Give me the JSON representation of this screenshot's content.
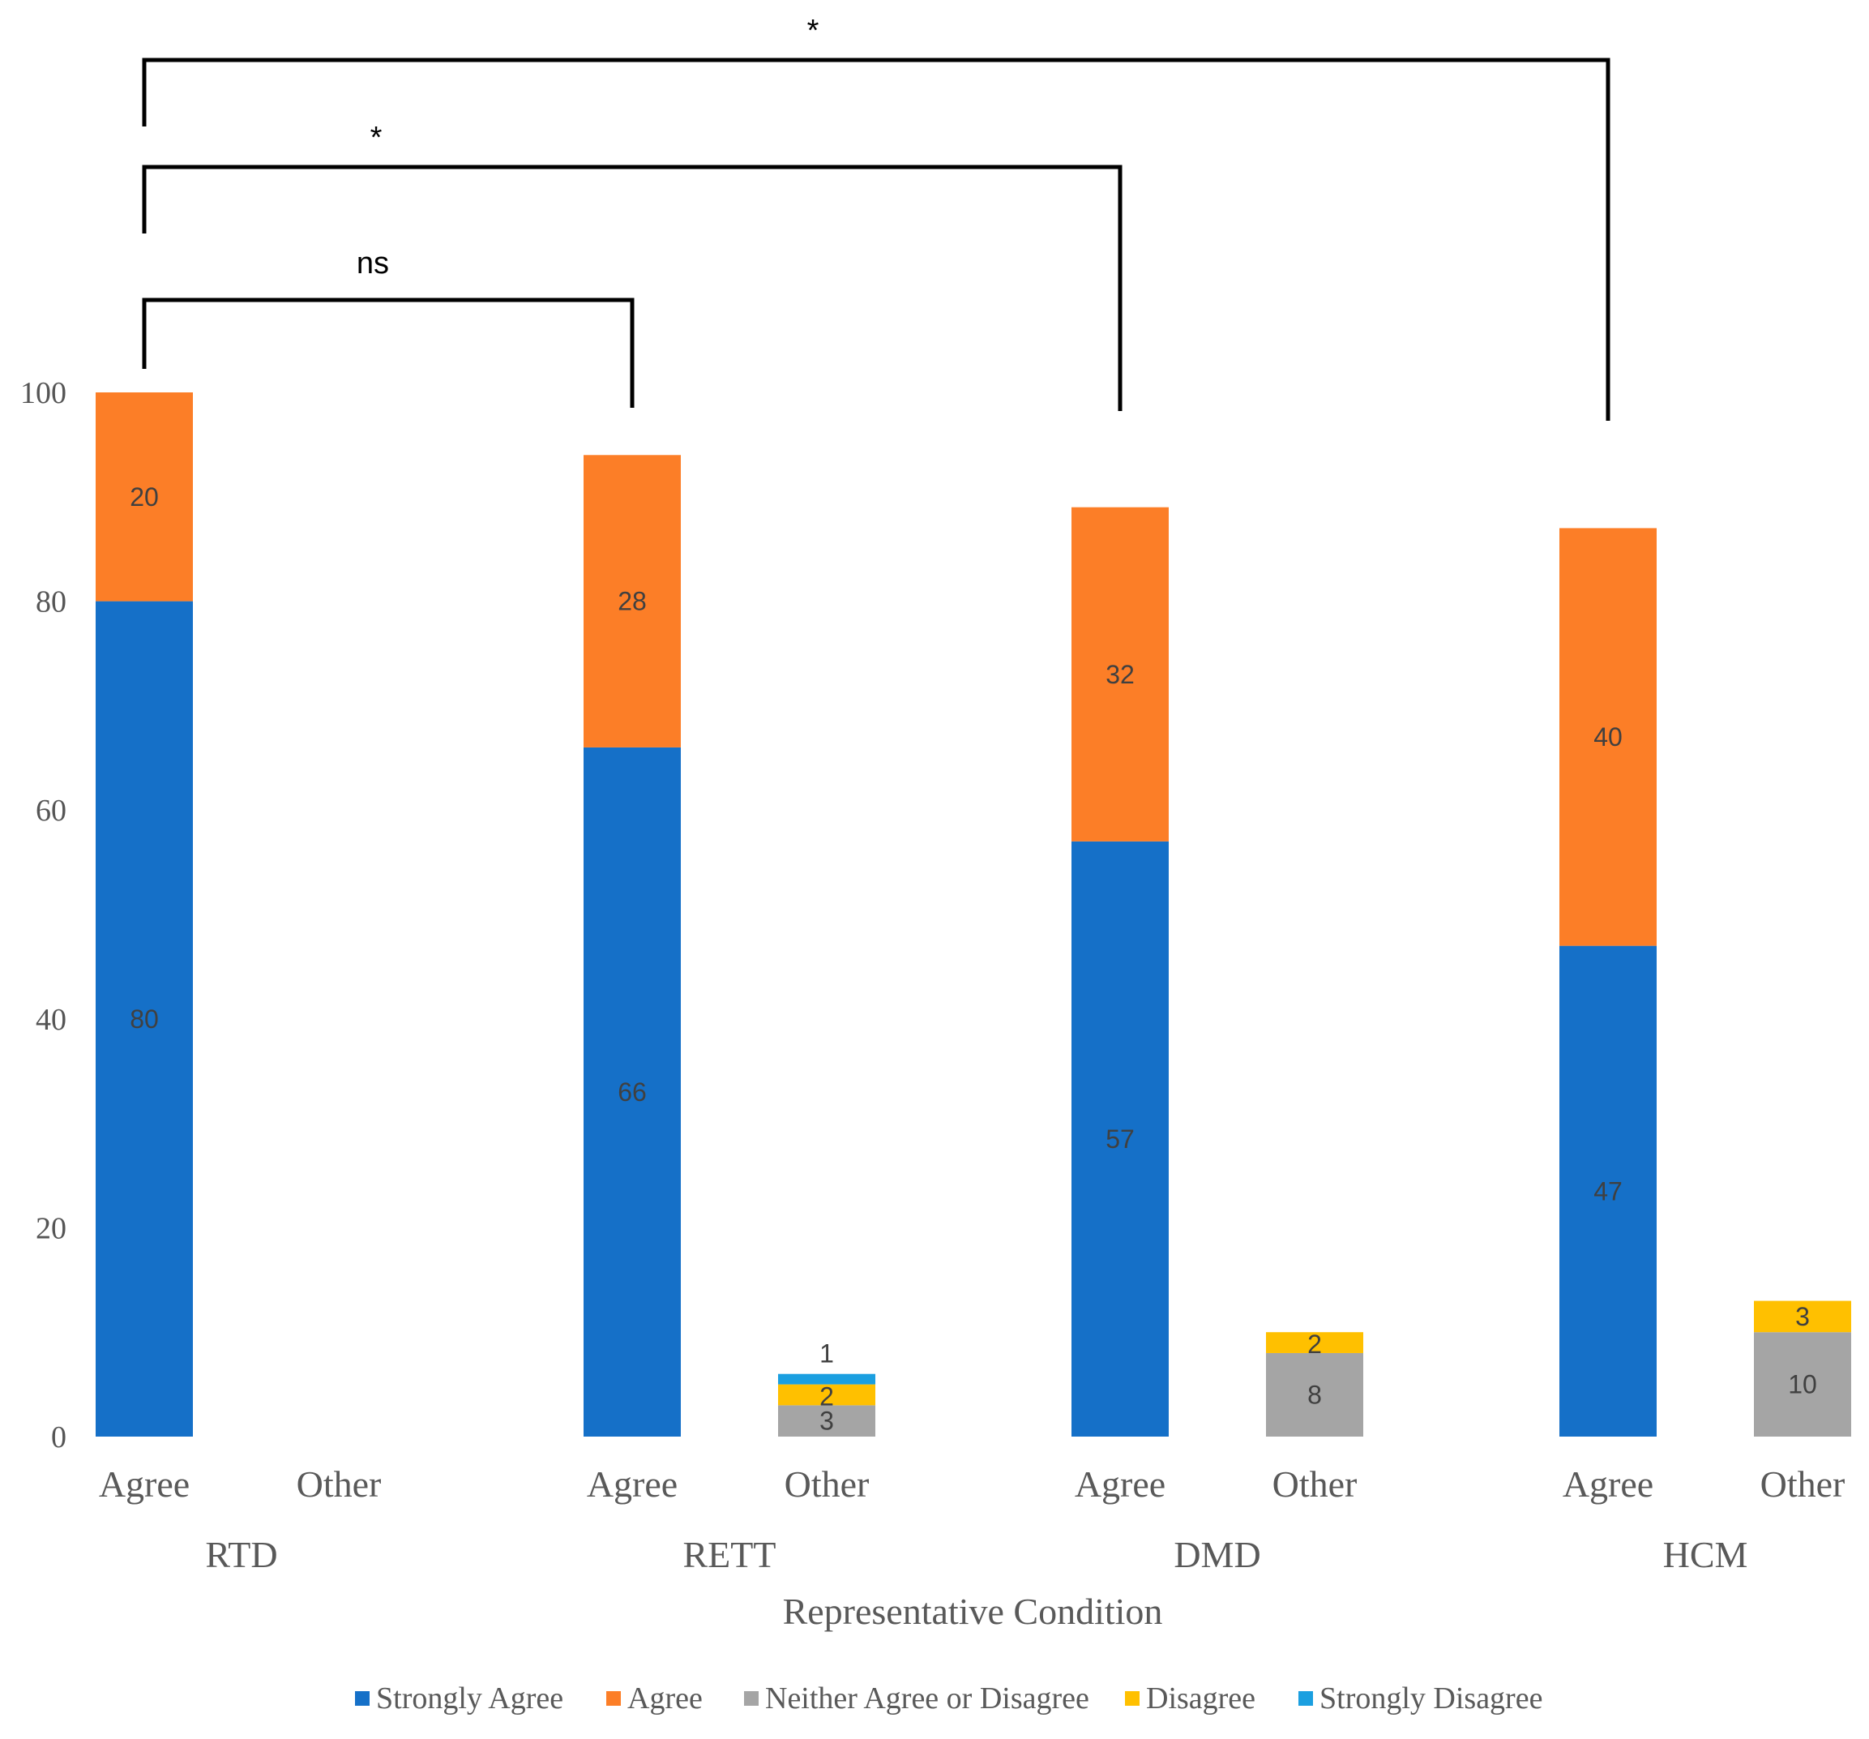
{
  "chart_data": {
    "type": "stacked-bar",
    "xlabel": "Representative Condition",
    "ylabel": "",
    "ylim": [
      0,
      100
    ],
    "yticks": [
      0,
      20,
      40,
      60,
      80,
      100
    ],
    "groups": [
      "RTD",
      "RETT",
      "DMD",
      "HCM"
    ],
    "subcategories": [
      "Agree",
      "Other"
    ],
    "series": [
      {
        "name": "Strongly Agree",
        "color": "#1570C8",
        "values": [
          80,
          null,
          66,
          null,
          57,
          null,
          47,
          null
        ]
      },
      {
        "name": "Agree",
        "color": "#FC7E27",
        "values": [
          20,
          null,
          28,
          null,
          32,
          null,
          40,
          null
        ]
      },
      {
        "name": "Neither Agree or Disagree",
        "color": "#A5A5A5",
        "values": [
          null,
          null,
          null,
          3,
          null,
          8,
          null,
          10
        ]
      },
      {
        "name": "Disagree",
        "color": "#FFC000",
        "values": [
          null,
          null,
          null,
          2,
          null,
          2,
          null,
          3
        ]
      },
      {
        "name": "Strongly Disagree",
        "color": "#1B9FE0",
        "values": [
          null,
          null,
          null,
          1,
          null,
          null,
          null,
          null
        ]
      }
    ],
    "legend_position": "bottom",
    "significance": [
      {
        "from_group": "RTD",
        "to_group": "RETT",
        "label": "ns"
      },
      {
        "from_group": "RTD",
        "to_group": "DMD",
        "label": "*"
      },
      {
        "from_group": "RTD",
        "to_group": "HCM",
        "label": "*"
      }
    ]
  }
}
